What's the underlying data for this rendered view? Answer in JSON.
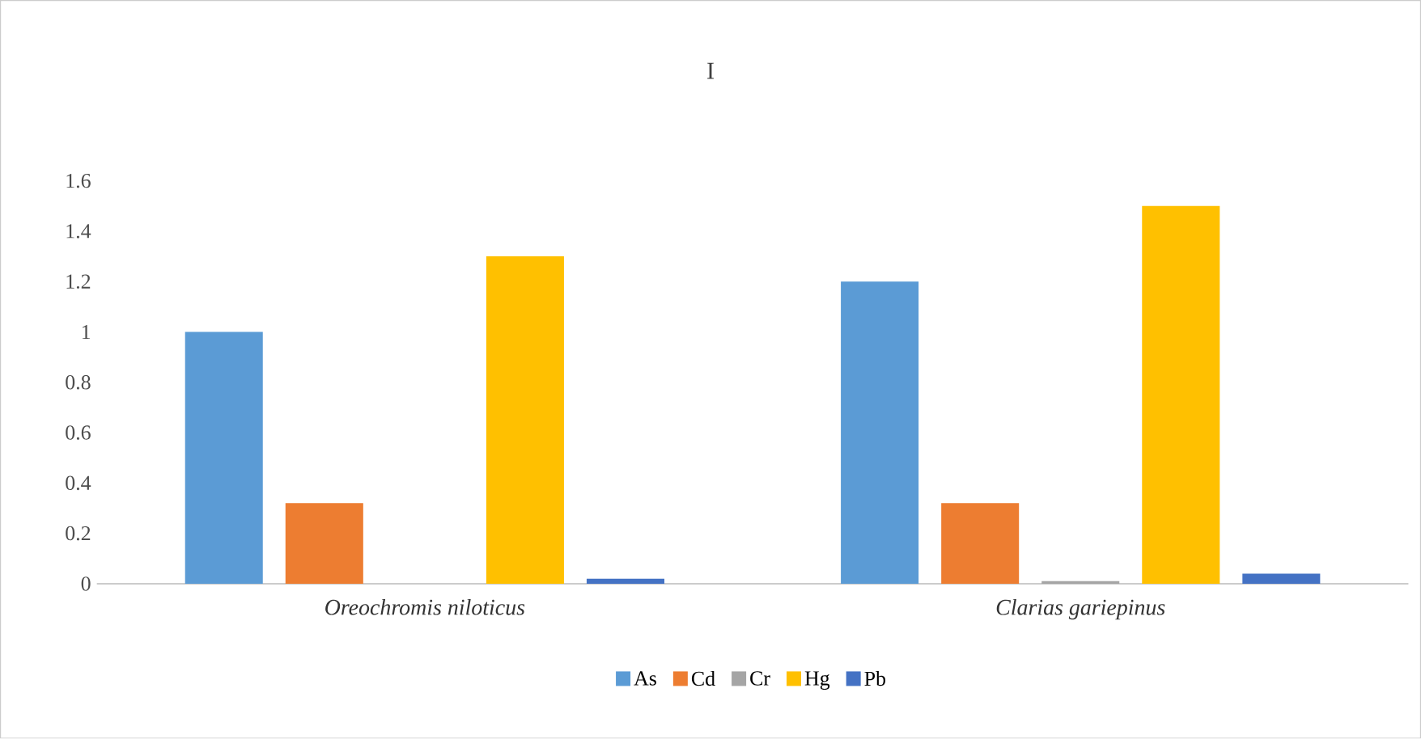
{
  "chart_data": {
    "type": "bar",
    "title": "I",
    "categories": [
      "Oreochromis niloticus",
      "Clarias gariepinus"
    ],
    "series": [
      {
        "name": "As",
        "color": "#5b9bd5",
        "values": [
          1.0,
          1.2
        ]
      },
      {
        "name": "Cd",
        "color": "#ed7d31",
        "values": [
          0.32,
          0.32
        ]
      },
      {
        "name": "Cr",
        "color": "#a5a5a5",
        "values": [
          0,
          0.01
        ]
      },
      {
        "name": "Hg",
        "color": "#ffc000",
        "values": [
          1.3,
          1.5
        ]
      },
      {
        "name": "Pb",
        "color": "#4472c4",
        "values": [
          0.02,
          0.04
        ]
      }
    ],
    "ylim": [
      0,
      1.6
    ],
    "yticks": [
      0,
      0.2,
      0.4,
      0.6,
      0.8,
      1,
      1.2,
      1.4,
      1.6
    ],
    "legend": "bottom"
  }
}
